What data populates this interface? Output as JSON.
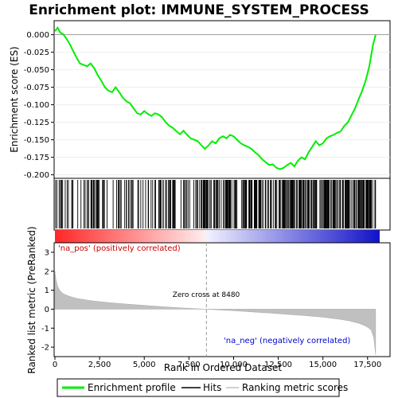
{
  "chart_data": [
    {
      "type": "line",
      "title": "Enrichment plot: IMMUNE_SYSTEM_PROCESS",
      "ylabel": "Enrichment score (ES)",
      "ylim": [
        -0.205,
        0.02
      ],
      "xlim": [
        0,
        18000
      ],
      "yticks": [
        "0.000",
        "-0.025",
        "-0.050",
        "-0.075",
        "-0.100",
        "-0.125",
        "-0.150",
        "-0.175",
        "-0.200"
      ],
      "ytick_values": [
        0.0,
        -0.025,
        -0.05,
        -0.075,
        -0.1,
        -0.125,
        -0.15,
        -0.175,
        -0.2
      ],
      "color": "#00ee00",
      "series": [
        {
          "name": "Enrichment profile",
          "x": [
            0,
            150,
            300,
            450,
            600,
            800,
            1000,
            1200,
            1400,
            1600,
            1800,
            2000,
            2200,
            2400,
            2600,
            2800,
            3000,
            3200,
            3400,
            3600,
            3800,
            4000,
            4200,
            4400,
            4600,
            4800,
            5000,
            5200,
            5400,
            5600,
            5800,
            6000,
            6200,
            6400,
            6600,
            6800,
            7000,
            7200,
            7400,
            7600,
            7800,
            8000,
            8200,
            8400,
            8600,
            8800,
            9000,
            9200,
            9400,
            9600,
            9800,
            10000,
            10200,
            10400,
            10600,
            10800,
            11000,
            11200,
            11400,
            11600,
            11800,
            12000,
            12200,
            12400,
            12600,
            12800,
            13000,
            13200,
            13400,
            13600,
            13800,
            14000,
            14200,
            14400,
            14600,
            14800,
            15000,
            15200,
            15400,
            15600,
            15800,
            16000,
            16200,
            16400,
            16600,
            16800,
            17000,
            17200,
            17400,
            17600,
            17800,
            17950
          ],
          "y": [
            0.005,
            0.01,
            0.003,
            0.001,
            -0.004,
            -0.012,
            -0.022,
            -0.032,
            -0.041,
            -0.043,
            -0.045,
            -0.041,
            -0.048,
            -0.058,
            -0.066,
            -0.075,
            -0.08,
            -0.082,
            -0.075,
            -0.082,
            -0.09,
            -0.095,
            -0.098,
            -0.105,
            -0.112,
            -0.114,
            -0.109,
            -0.113,
            -0.116,
            -0.112,
            -0.114,
            -0.118,
            -0.125,
            -0.13,
            -0.133,
            -0.138,
            -0.142,
            -0.137,
            -0.143,
            -0.148,
            -0.15,
            -0.152,
            -0.158,
            -0.163,
            -0.158,
            -0.152,
            -0.155,
            -0.148,
            -0.145,
            -0.148,
            -0.143,
            -0.145,
            -0.15,
            -0.155,
            -0.158,
            -0.16,
            -0.163,
            -0.168,
            -0.172,
            -0.178,
            -0.182,
            -0.186,
            -0.185,
            -0.19,
            -0.192,
            -0.19,
            -0.186,
            -0.183,
            -0.188,
            -0.18,
            -0.175,
            -0.178,
            -0.168,
            -0.16,
            -0.152,
            -0.158,
            -0.155,
            -0.148,
            -0.145,
            -0.143,
            -0.14,
            -0.138,
            -0.13,
            -0.125,
            -0.115,
            -0.105,
            -0.092,
            -0.08,
            -0.065,
            -0.045,
            -0.015,
            0.0
          ]
        }
      ]
    },
    {
      "type": "area",
      "ylabel": "Ranked list metric (PreRanked)",
      "xlabel": "Rank in Ordered Dataset",
      "ylim": [
        -2.5,
        3.5
      ],
      "xlim": [
        0,
        18000
      ],
      "yticks": [
        "3",
        "2",
        "1",
        "0",
        "-1",
        "-2"
      ],
      "ytick_values": [
        3,
        2,
        1,
        0,
        -1,
        -2
      ],
      "xticks": [
        "0",
        "2,500",
        "5,000",
        "7,500",
        "10,000",
        "12,500",
        "15,000",
        "17,500"
      ],
      "xtick_values": [
        0,
        2500,
        5000,
        7500,
        10000,
        12500,
        15000,
        17500
      ],
      "zero_cross": 8480,
      "series": [
        {
          "name": "Ranking metric scores",
          "x": [
            0,
            50,
            150,
            300,
            500,
            800,
            1200,
            2000,
            3000,
            4000,
            5000,
            6000,
            7000,
            8000,
            8480,
            9000,
            10000,
            11000,
            12000,
            13000,
            14000,
            15000,
            16000,
            16500,
            17000,
            17300,
            17500,
            17700,
            17850,
            17950
          ],
          "y": [
            2.0,
            1.6,
            1.2,
            0.95,
            0.8,
            0.68,
            0.57,
            0.45,
            0.35,
            0.27,
            0.2,
            0.13,
            0.07,
            0.02,
            0.0,
            -0.03,
            -0.08,
            -0.14,
            -0.2,
            -0.27,
            -0.34,
            -0.42,
            -0.54,
            -0.62,
            -0.74,
            -0.85,
            -0.95,
            -1.1,
            -1.5,
            -2.4
          ]
        }
      ]
    }
  ],
  "annotations": {
    "zero_cross_label": "Zero cross at 8480",
    "pos_label": "'na_pos' (positively correlated)",
    "neg_label": "'na_neg' (negatively correlated)"
  },
  "legend": {
    "items": [
      {
        "label": "Enrichment profile",
        "color": "#00ee00"
      },
      {
        "label": "Hits",
        "color": "#000000"
      },
      {
        "label": "Ranking metric scores",
        "color": "#c0c0c0"
      }
    ]
  }
}
